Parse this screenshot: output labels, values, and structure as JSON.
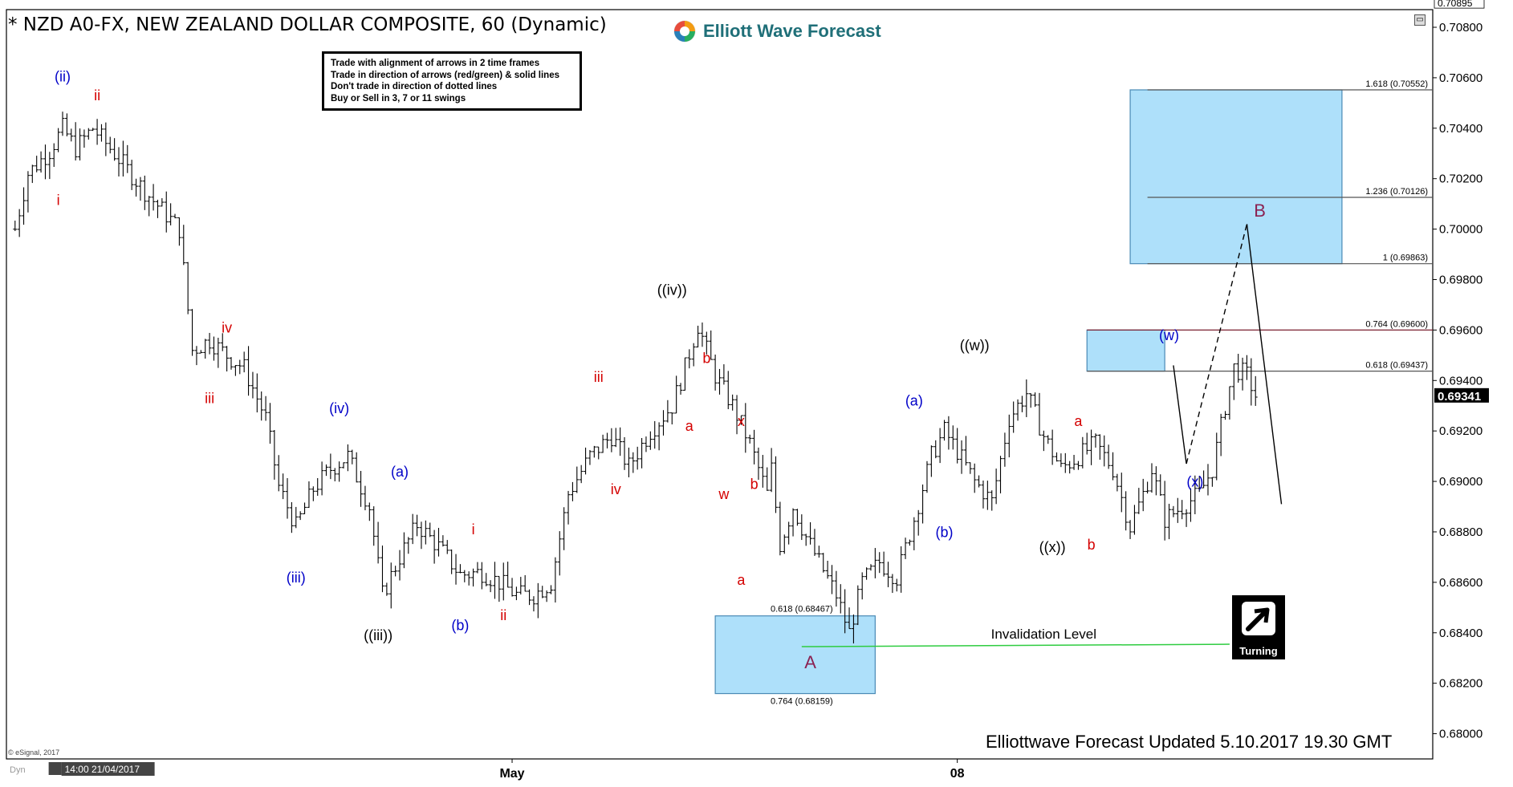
{
  "header": {
    "title": "* NZD A0-FX, NEW ZEALAND DOLLAR COMPOSITE, 60 (Dynamic)",
    "brand": "Elliott Wave Forecast",
    "corner_icon": "collapse-window-icon"
  },
  "rules_box": {
    "lines": [
      "Trade with alignment of arrows in 2 time frames",
      "Trade in direction of arrows (red/green) & solid lines",
      "Don't trade in direction of dotted lines",
      "Buy or Sell in 3, 7 or 11 swings"
    ]
  },
  "footer": {
    "note": "Elliottwave Forecast Updated 5.10.2017 19.30 GMT",
    "copyright": "© eSignal, 2017",
    "turning_label": "Turning",
    "turning_icon": "turning-arrow-icon"
  },
  "chart_data": {
    "type": "bar",
    "symbol": "NZD A0-FX",
    "ylim": [
      0.679,
      0.7087
    ],
    "y_ticks": [
      "0.70800",
      "0.70600",
      "0.70400",
      "0.70200",
      "0.70000",
      "0.69800",
      "0.69600",
      "0.69400",
      "0.69200",
      "0.69000",
      "0.68800",
      "0.68600",
      "0.68400",
      "0.68200",
      "0.68000"
    ],
    "y_top_readout": "0.70895",
    "last_price": "0.69341",
    "x_ticks": [
      {
        "label": "Dyn",
        "bar": 0
      },
      {
        "label": "14:00 21/04/2017",
        "bar": 10
      },
      {
        "label": "May",
        "bar": 115
      },
      {
        "label": "08",
        "bar": 218
      }
    ],
    "colors": {
      "blue_box": "#aee0fa",
      "box_border": "#4a8ab5",
      "red": "#d40000",
      "blue": "#0000c8",
      "black": "#000000",
      "purple": "#8b2252",
      "green": "#2ecc40",
      "ref_line_dark": "#555555",
      "ref_line_red": "#7a2030"
    },
    "path": [
      [
        0,
        0.7
      ],
      [
        3,
        0.7022
      ],
      [
        8,
        0.7031
      ],
      [
        11,
        0.704
      ],
      [
        14,
        0.7032
      ],
      [
        18,
        0.704
      ],
      [
        23,
        0.703
      ],
      [
        30,
        0.7015
      ],
      [
        38,
        0.7
      ],
      [
        41,
        0.6952
      ],
      [
        45,
        0.6956
      ],
      [
        49,
        0.695
      ],
      [
        53,
        0.6945
      ],
      [
        58,
        0.6925
      ],
      [
        61,
        0.6898
      ],
      [
        65,
        0.6882
      ],
      [
        69,
        0.6897
      ],
      [
        73,
        0.6905
      ],
      [
        77,
        0.691
      ],
      [
        82,
        0.689
      ],
      [
        85,
        0.6855
      ],
      [
        89,
        0.687
      ],
      [
        93,
        0.6883
      ],
      [
        98,
        0.6874
      ],
      [
        103,
        0.6863
      ],
      [
        108,
        0.6864
      ],
      [
        112,
        0.686
      ],
      [
        116,
        0.6855
      ],
      [
        120,
        0.6855
      ],
      [
        124,
        0.686
      ],
      [
        128,
        0.6895
      ],
      [
        133,
        0.691
      ],
      [
        138,
        0.6918
      ],
      [
        142,
        0.6906
      ],
      [
        147,
        0.692
      ],
      [
        152,
        0.693
      ],
      [
        155,
        0.6945
      ],
      [
        158,
        0.6962
      ],
      [
        162,
        0.6942
      ],
      [
        166,
        0.693
      ],
      [
        170,
        0.6915
      ],
      [
        174,
        0.6895
      ],
      [
        175,
        0.6905
      ],
      [
        177,
        0.6875
      ],
      [
        180,
        0.689
      ],
      [
        183,
        0.6878
      ],
      [
        186,
        0.6868
      ],
      [
        190,
        0.6855
      ],
      [
        193,
        0.684
      ],
      [
        196,
        0.686
      ],
      [
        200,
        0.6868
      ],
      [
        204,
        0.6862
      ],
      [
        208,
        0.6885
      ],
      [
        212,
        0.691
      ],
      [
        215,
        0.692
      ],
      [
        218,
        0.6912
      ],
      [
        222,
        0.69
      ],
      [
        226,
        0.6892
      ],
      [
        230,
        0.6925
      ],
      [
        234,
        0.6935
      ],
      [
        238,
        0.6918
      ],
      [
        242,
        0.6905
      ],
      [
        246,
        0.691
      ],
      [
        250,
        0.6915
      ],
      [
        254,
        0.6905
      ],
      [
        258,
        0.6882
      ],
      [
        261,
        0.6895
      ],
      [
        263,
        0.6905
      ],
      [
        266,
        0.6885
      ],
      [
        270,
        0.689
      ],
      [
        274,
        0.6895
      ],
      [
        277,
        0.6905
      ],
      [
        280,
        0.693
      ],
      [
        282,
        0.6945
      ],
      [
        285,
        0.6942
      ],
      [
        287,
        0.6934
      ]
    ],
    "wave_labels": [
      {
        "text": "(ii)",
        "bar": 11,
        "y": 0.70585,
        "color": "blue"
      },
      {
        "text": "ii",
        "bar": 19,
        "y": 0.7051,
        "color": "red"
      },
      {
        "text": "i",
        "bar": 10,
        "y": 0.70095,
        "color": "red"
      },
      {
        "text": "iv",
        "bar": 49,
        "y": 0.6959,
        "color": "red"
      },
      {
        "text": "iii",
        "bar": 45,
        "y": 0.6931,
        "color": "red"
      },
      {
        "text": "(iv)",
        "bar": 75,
        "y": 0.6927,
        "color": "blue"
      },
      {
        "text": "(iii)",
        "bar": 65,
        "y": 0.686,
        "color": "blue"
      },
      {
        "text": "(a)",
        "bar": 89,
        "y": 0.6902,
        "color": "blue"
      },
      {
        "text": "((iii))",
        "bar": 84,
        "y": 0.6837,
        "color": "black"
      },
      {
        "text": "i",
        "bar": 106,
        "y": 0.6879,
        "color": "red"
      },
      {
        "text": "(b)",
        "bar": 103,
        "y": 0.6841,
        "color": "blue"
      },
      {
        "text": "ii",
        "bar": 113,
        "y": 0.6845,
        "color": "red"
      },
      {
        "text": "iii",
        "bar": 135,
        "y": 0.69395,
        "color": "red"
      },
      {
        "text": "iv",
        "bar": 139,
        "y": 0.6895,
        "color": "red"
      },
      {
        "text": "((iv))",
        "bar": 152,
        "y": 0.6974,
        "color": "black"
      },
      {
        "text": "b",
        "bar": 160,
        "y": 0.6947,
        "color": "red"
      },
      {
        "text": "a",
        "bar": 156,
        "y": 0.692,
        "color": "red"
      },
      {
        "text": "x",
        "bar": 168,
        "y": 0.6922,
        "color": "red"
      },
      {
        "text": "w",
        "bar": 164,
        "y": 0.6893,
        "color": "red"
      },
      {
        "text": "b",
        "bar": 171,
        "y": 0.6897,
        "color": "red"
      },
      {
        "text": "a",
        "bar": 168,
        "y": 0.6859,
        "color": "red"
      },
      {
        "text": "A",
        "bar": 184,
        "y": 0.6826,
        "color": "purple"
      },
      {
        "text": "(a)",
        "bar": 208,
        "y": 0.693,
        "color": "blue"
      },
      {
        "text": "(b)",
        "bar": 215,
        "y": 0.6878,
        "color": "blue"
      },
      {
        "text": "((w))",
        "bar": 222,
        "y": 0.6952,
        "color": "black"
      },
      {
        "text": "a",
        "bar": 246,
        "y": 0.6922,
        "color": "red"
      },
      {
        "text": "((x))",
        "bar": 240,
        "y": 0.6872,
        "color": "black"
      },
      {
        "text": "b",
        "bar": 249,
        "y": 0.6873,
        "color": "red"
      },
      {
        "text": "(w)",
        "bar": 267,
        "y": 0.6956,
        "color": "blue"
      },
      {
        "text": "(x)",
        "bar": 273,
        "y": 0.6898,
        "color": "blue"
      },
      {
        "text": "B",
        "bar": 288,
        "y": 0.7005,
        "color": "purple"
      }
    ],
    "fib_levels": [
      {
        "label": "1.618 (0.70552)",
        "y": 0.70552,
        "bar_start": 264,
        "color": "ref_line_dark"
      },
      {
        "label": "1.236 (0.70126)",
        "y": 0.70126,
        "bar_start": 264,
        "color": "ref_line_dark"
      },
      {
        "label": "1 (0.69863)",
        "y": 0.69863,
        "bar_start": 264,
        "color": "ref_line_dark"
      },
      {
        "label": "0.764 (0.69600)",
        "y": 0.696,
        "bar_start": 250,
        "color": "ref_line_red"
      },
      {
        "label": "0.618 (0.69437)",
        "y": 0.69437,
        "bar_start": 250,
        "color": "ref_line_dark"
      }
    ],
    "boxes": [
      {
        "bar_start": 260,
        "bar_end": 309,
        "y_top": 0.70552,
        "y_bottom": 0.69863
      },
      {
        "bar_start": 250,
        "bar_end": 268,
        "y_top": 0.696,
        "y_bottom": 0.69437
      },
      {
        "bar_start": 164,
        "bar_end": 201,
        "y_top": 0.68467,
        "y_bottom": 0.68159
      }
    ],
    "lower_box_labels": [
      {
        "text": "0.618 (0.68467)",
        "bar": 184,
        "y": 0.68467
      },
      {
        "text": "0.764 (0.68159)",
        "bar": 184,
        "y": 0.68159
      }
    ],
    "invalidation": {
      "label": "Invalidation Level",
      "value": "0.68345",
      "y": 0.68345,
      "bar_start": 184,
      "bar_end": 283
    },
    "projection": {
      "solid_1": [
        [
          270,
          0.6946
        ],
        [
          273,
          0.6907
        ]
      ],
      "dashed": [
        [
          273,
          0.6907
        ],
        [
          287,
          0.7002
        ]
      ],
      "solid_2": [
        [
          287,
          0.7002
        ],
        [
          295,
          0.6891
        ]
      ]
    }
  }
}
